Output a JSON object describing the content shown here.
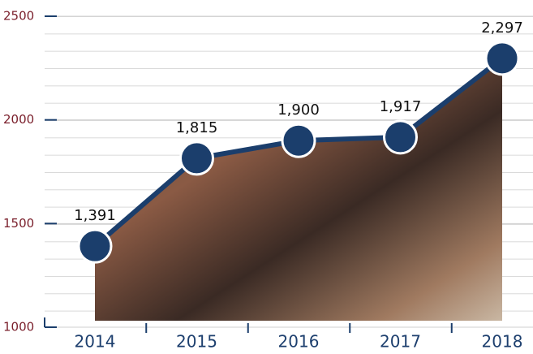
{
  "chart_data": {
    "type": "line",
    "categories": [
      "2014",
      "2015",
      "2016",
      "2017",
      "2018"
    ],
    "values": [
      1391,
      1815,
      1900,
      1917,
      2297
    ],
    "value_labels": [
      "1,391",
      "1,815",
      "1,900",
      "1,917",
      "2,297"
    ],
    "color": "#1b3e6c",
    "ylim": [
      1000,
      2500
    ],
    "yticks": [
      1000,
      1500,
      2000,
      2500
    ],
    "grid": true
  }
}
